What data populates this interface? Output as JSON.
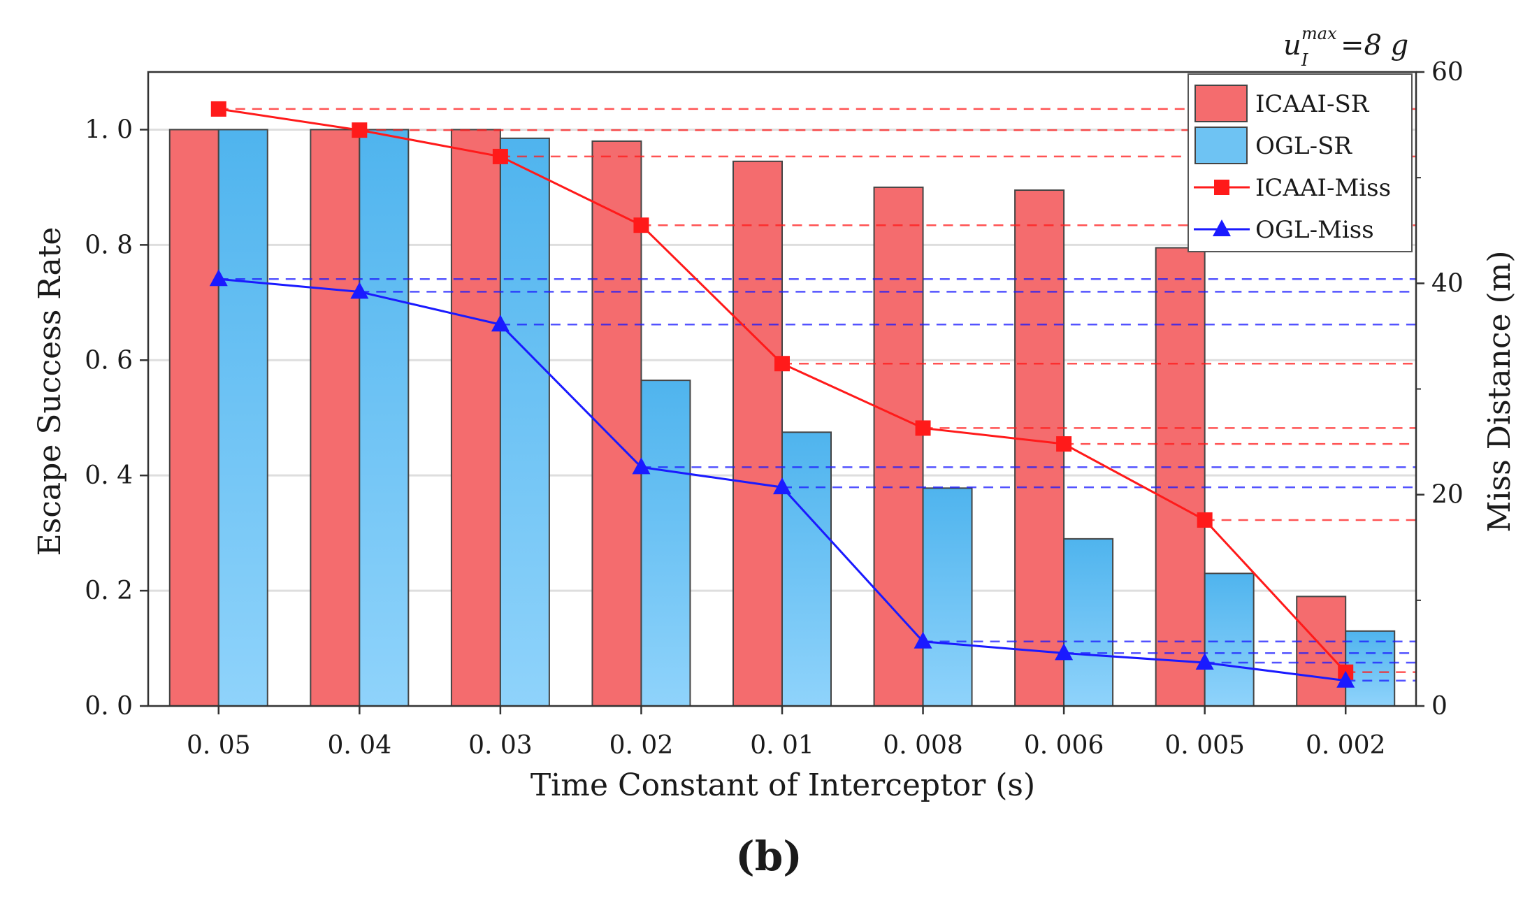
{
  "chart_data": {
    "type": "bar",
    "categories": [
      "0. 05",
      "0. 04",
      "0. 03",
      "0. 02",
      "0. 01",
      "0. 008",
      "0. 006",
      "0. 005",
      "0. 002"
    ],
    "xlabel": "Time Constant of Interceptor (s)",
    "ylabel": "Escape Success Rate",
    "y2label": "Miss Distance (m)",
    "ylim": [
      0,
      1.1
    ],
    "y2lim": [
      0,
      60
    ],
    "yticks": [
      "0. 0",
      "0. 2",
      "0. 4",
      "0. 6",
      "0. 8",
      "1. 0"
    ],
    "yticks_values": [
      0,
      0.2,
      0.4,
      0.6,
      0.8,
      1.0
    ],
    "y2ticks": [
      "0",
      "20",
      "40",
      "60"
    ],
    "y2ticks_values": [
      0,
      20,
      40,
      60
    ],
    "grid": true,
    "legend_position": "top-right",
    "annotation": {
      "base": "u",
      "sup": "max",
      "sub": "I",
      "rest": "=8 g"
    },
    "caption": "(b)",
    "series": [
      {
        "name": "ICAAI-SR",
        "kind": "bar",
        "axis": "left",
        "color": "#f46c6e",
        "values": [
          1.0,
          1.0,
          1.0,
          0.98,
          0.945,
          0.9,
          0.895,
          0.795,
          0.19
        ]
      },
      {
        "name": "OGL-SR",
        "kind": "bar",
        "axis": "left",
        "color": "#6ec3f3",
        "values": [
          1.0,
          1.0,
          0.985,
          0.565,
          0.475,
          0.378,
          0.29,
          0.23,
          0.13
        ]
      },
      {
        "name": "ICAAI-Miss",
        "kind": "line",
        "marker": "square",
        "axis": "right",
        "color": "#ff1a1a",
        "values": [
          56.5,
          54.5,
          52.0,
          45.5,
          32.4,
          26.3,
          24.8,
          17.6,
          3.2
        ]
      },
      {
        "name": "OGL-Miss",
        "kind": "line",
        "marker": "triangle",
        "axis": "right",
        "color": "#1a1aff",
        "values": [
          40.4,
          39.2,
          36.1,
          22.6,
          20.7,
          6.1,
          5.0,
          4.1,
          2.4
        ]
      }
    ]
  }
}
